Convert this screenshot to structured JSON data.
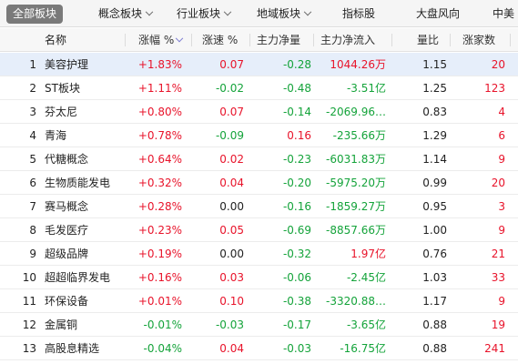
{
  "tabs": [
    {
      "label": "全部板块",
      "active": true,
      "has_dropdown": false
    },
    {
      "label": "概念板块",
      "active": false,
      "has_dropdown": true
    },
    {
      "label": "行业板块",
      "active": false,
      "has_dropdown": true
    },
    {
      "label": "地域板块",
      "active": false,
      "has_dropdown": true
    },
    {
      "label": "指标股",
      "active": false,
      "has_dropdown": false
    },
    {
      "label": "大盘风向",
      "active": false,
      "has_dropdown": false
    },
    {
      "label": "中美",
      "active": false,
      "has_dropdown": false
    }
  ],
  "columns": {
    "name": "名称",
    "change_pct": "涨幅 %",
    "speed_pct": "涨速 %",
    "main_net": "主力净量",
    "main_inflow": "主力净流入",
    "volume_ratio": "量比",
    "up_count": "涨家数"
  },
  "colors": {
    "up": "#e8132a",
    "down": "#14a33a",
    "selected_row": "#e6eefa",
    "active_tab": "#7a7a7a"
  },
  "rows": [
    {
      "idx": "1",
      "name": "美容护理",
      "change": "+1.83%",
      "speed": "0.07",
      "net": "-0.28",
      "inflow": "1044.26万",
      "ratio": "1.15",
      "up": "20",
      "selected": true
    },
    {
      "idx": "2",
      "name": "ST板块",
      "change": "+1.11%",
      "speed": "-0.02",
      "net": "-0.48",
      "inflow": "-3.51亿",
      "ratio": "1.25",
      "up": "123",
      "selected": false
    },
    {
      "idx": "3",
      "name": "芬太尼",
      "change": "+0.80%",
      "speed": "0.07",
      "net": "-0.14",
      "inflow": "-2069.96…",
      "ratio": "0.83",
      "up": "4",
      "selected": false
    },
    {
      "idx": "4",
      "name": "青海",
      "change": "+0.78%",
      "speed": "-0.09",
      "net": "0.16",
      "inflow": "-235.66万",
      "ratio": "1.29",
      "up": "6",
      "selected": false
    },
    {
      "idx": "5",
      "name": "代糖概念",
      "change": "+0.64%",
      "speed": "0.02",
      "net": "-0.23",
      "inflow": "-6031.83万",
      "ratio": "1.14",
      "up": "9",
      "selected": false
    },
    {
      "idx": "6",
      "name": "生物质能发电",
      "change": "+0.32%",
      "speed": "0.04",
      "net": "-0.20",
      "inflow": "-5975.20万",
      "ratio": "0.99",
      "up": "20",
      "selected": false
    },
    {
      "idx": "7",
      "name": "赛马概念",
      "change": "+0.28%",
      "speed": "0.00",
      "net": "-0.16",
      "inflow": "-1859.27万",
      "ratio": "0.95",
      "up": "3",
      "selected": false
    },
    {
      "idx": "8",
      "name": "毛发医疗",
      "change": "+0.23%",
      "speed": "0.05",
      "net": "-0.69",
      "inflow": "-8857.66万",
      "ratio": "1.00",
      "up": "9",
      "selected": false
    },
    {
      "idx": "9",
      "name": "超级品牌",
      "change": "+0.19%",
      "speed": "0.00",
      "net": "-0.32",
      "inflow": "1.97亿",
      "ratio": "0.76",
      "up": "21",
      "selected": false
    },
    {
      "idx": "10",
      "name": "超超临界发电",
      "change": "+0.16%",
      "speed": "0.03",
      "net": "-0.06",
      "inflow": "-2.45亿",
      "ratio": "1.03",
      "up": "33",
      "selected": false
    },
    {
      "idx": "11",
      "name": "环保设备",
      "change": "+0.01%",
      "speed": "0.10",
      "net": "-0.38",
      "inflow": "-3320.88…",
      "ratio": "1.17",
      "up": "9",
      "selected": false
    },
    {
      "idx": "12",
      "name": "金属铜",
      "change": "-0.01%",
      "speed": "-0.03",
      "net": "-0.17",
      "inflow": "-3.65亿",
      "ratio": "0.88",
      "up": "19",
      "selected": false
    },
    {
      "idx": "13",
      "name": "高股息精选",
      "change": "-0.04%",
      "speed": "0.04",
      "net": "-0.03",
      "inflow": "-16.75亿",
      "ratio": "0.88",
      "up": "241",
      "selected": false
    }
  ]
}
